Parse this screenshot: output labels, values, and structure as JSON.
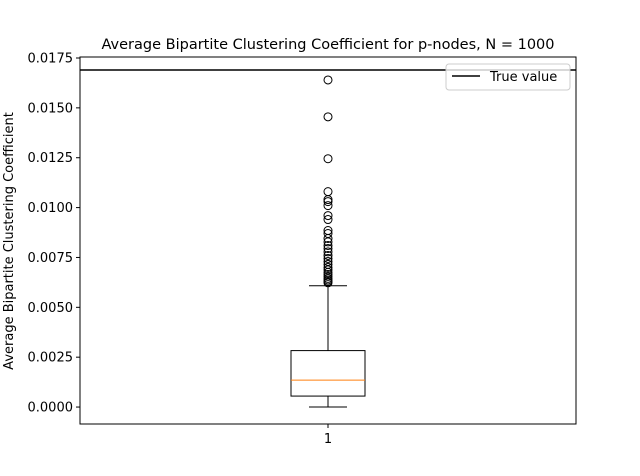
{
  "chart_data": {
    "type": "box",
    "title": "Average Bipartite Clustering Coefficient for p-nodes, N = 1000",
    "xlabel": "",
    "ylabel": "Average Bipartite Clustering Coefficient",
    "x_tick_labels": [
      "1"
    ],
    "y_ticks": [
      "0.0000",
      "0.0025",
      "0.0050",
      "0.0075",
      "0.0100",
      "0.0125",
      "0.0150",
      "0.0175"
    ],
    "y_tick_values": [
      0.0,
      0.0025,
      0.005,
      0.0075,
      0.01,
      0.0125,
      0.015,
      0.0175
    ],
    "ylim": [
      -0.00085,
      0.01755
    ],
    "grid": false,
    "legend_position": "top-right",
    "legend": [
      {
        "label": "True value",
        "color": "#000000"
      }
    ],
    "box": {
      "category": "1",
      "whisker_low": 0.0,
      "q1": 0.00055,
      "median": 0.00135,
      "q3": 0.00283,
      "whisker_high": 0.00608,
      "box_color": "#000000",
      "median_color": "#ff7f0e",
      "outliers": [
        0.00623,
        0.0063,
        0.00637,
        0.00645,
        0.00655,
        0.00665,
        0.00675,
        0.00688,
        0.007,
        0.00715,
        0.0073,
        0.00745,
        0.0076,
        0.00778,
        0.00795,
        0.0081,
        0.00828,
        0.00845,
        0.0087,
        0.00885,
        0.0094,
        0.0096,
        0.0101,
        0.0103,
        0.0104,
        0.0108,
        0.01245,
        0.01455,
        0.0164
      ]
    },
    "true_value": 0.0169
  }
}
